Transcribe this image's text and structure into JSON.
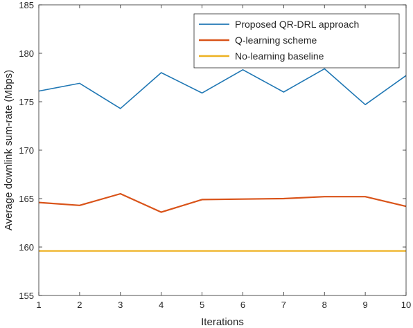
{
  "chart_data": {
    "type": "line",
    "title": "",
    "xlabel": "Iterations",
    "ylabel": "Average downlink sum-rate (Mbps)",
    "xlim": [
      1,
      10
    ],
    "ylim": [
      155,
      185
    ],
    "xticks": [
      1,
      2,
      3,
      4,
      5,
      6,
      7,
      8,
      9,
      10
    ],
    "yticks": [
      155,
      160,
      165,
      170,
      175,
      180,
      185
    ],
    "grid": false,
    "legend_position": "top-right",
    "x": [
      1,
      2,
      3,
      4,
      5,
      6,
      7,
      8,
      9,
      10
    ],
    "series": [
      {
        "name": "Proposed QR-DRL approach",
        "color": "#1f77b4",
        "values": [
          176.1,
          176.9,
          174.3,
          178.0,
          175.9,
          178.3,
          176.0,
          178.4,
          174.7,
          177.7
        ]
      },
      {
        "name": "Q-learning scheme",
        "color": "#d95319",
        "values": [
          164.6,
          164.3,
          165.5,
          163.6,
          164.9,
          164.95,
          165.0,
          165.2,
          165.2,
          164.2
        ]
      },
      {
        "name": "No-learning baseline",
        "color": "#edb120",
        "values": [
          159.6,
          159.6,
          159.6,
          159.6,
          159.6,
          159.6,
          159.6,
          159.6,
          159.6,
          159.6
        ]
      }
    ]
  }
}
